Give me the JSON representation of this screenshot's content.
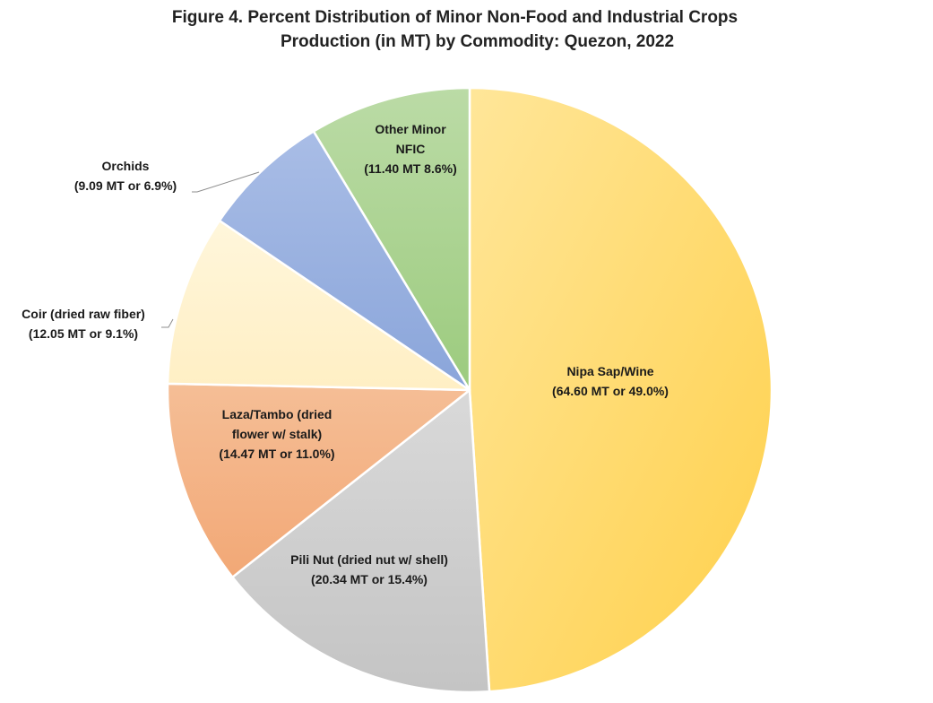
{
  "chart_data": {
    "type": "pie",
    "title": "Figure 4. Percent Distribution of Minor Non-Food and Industrial Crops Production (in MT) by Commodity: Quezon, 2022",
    "title_lines": [
      "Figure 4. Percent Distribution of Minor Non-Food and Industrial Crops",
      "Production (in MT) by Commodity: Quezon, 2022"
    ],
    "slices": [
      {
        "name": "Nipa Sap/Wine",
        "value_mt": 64.6,
        "percent": 49.0,
        "color": "#FFD966",
        "label_lines": [
          "Nipa Sap/Wine",
          "(64.60 MT or 49.0%)"
        ]
      },
      {
        "name": "Pili Nut (dried nut w/ shell)",
        "value_mt": 20.34,
        "percent": 15.4,
        "color": "#C9C9C9",
        "label_lines": [
          "Pili Nut (dried nut w/ shell)",
          "(20.34 MT or 15.4%)"
        ]
      },
      {
        "name": "Laza/Tambo (dried flower w/ stalk)",
        "value_mt": 14.47,
        "percent": 11.0,
        "color": "#F4B183",
        "label_lines": [
          "Laza/Tambo (dried",
          "flower w/ stalk)",
          "(14.47 MT or 11.0%)"
        ]
      },
      {
        "name": "Coir (dried raw fiber)",
        "value_mt": 12.05,
        "percent": 9.1,
        "color": "#FFF2CC",
        "label_lines": [
          "Coir (dried raw fiber)",
          "(12.05 MT or 9.1%)"
        ]
      },
      {
        "name": "Orchids",
        "value_mt": 9.09,
        "percent": 6.9,
        "color": "#8FAADC",
        "label_lines": [
          "Orchids",
          "(9.09 MT or 6.9%)"
        ]
      },
      {
        "name": "Other Minor NFIC",
        "value_mt": 11.4,
        "percent": 8.6,
        "color": "#A9D18E",
        "label_lines": [
          "Other Minor",
          "NFIC",
          "(11.40 MT 8.6%)"
        ]
      }
    ],
    "start_angle": "12 o'clock",
    "direction": "clockwise",
    "legend": "none"
  }
}
